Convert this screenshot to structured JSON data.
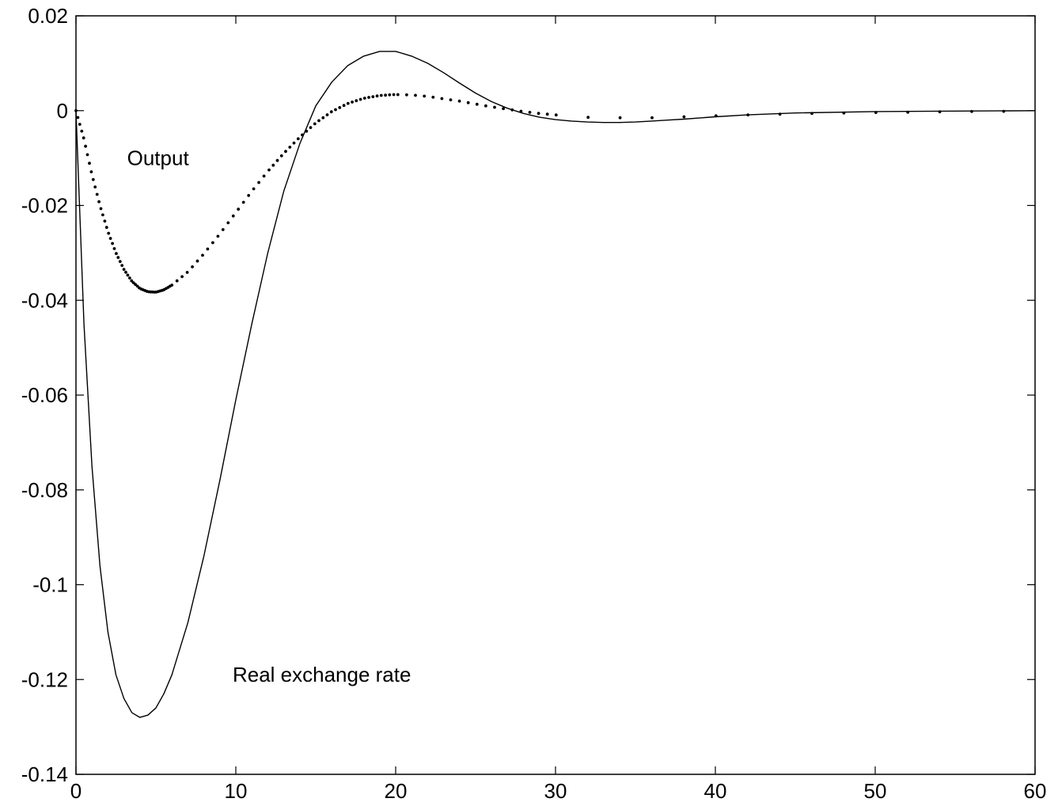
{
  "chart_data": {
    "type": "line",
    "title": "",
    "xlabel": "",
    "ylabel": "",
    "xlim": [
      0,
      60
    ],
    "ylim": [
      -0.14,
      0.02
    ],
    "grid": false,
    "legend": "none",
    "x_ticks": [
      0,
      10,
      20,
      30,
      40,
      50,
      60
    ],
    "x_tick_labels": [
      "0",
      "10",
      "20",
      "30",
      "40",
      "50",
      "60"
    ],
    "y_ticks": [
      0.02,
      0,
      -0.02,
      -0.04,
      -0.06,
      -0.08,
      -0.1,
      -0.12,
      -0.14
    ],
    "y_tick_labels": [
      "0.02",
      "0",
      "-0.02",
      "-0.04",
      "-0.06",
      "-0.08",
      "-0.1",
      "-0.12",
      "-0.14"
    ],
    "annotations": [
      {
        "text": "Output",
        "x": 3.2,
        "y": -0.0115
      },
      {
        "text": "Real exchange rate",
        "x": 9.8,
        "y": -0.1205
      }
    ],
    "series": [
      {
        "name": "Real exchange rate",
        "style": "solid",
        "color": "#000000",
        "x": [
          0,
          0.5,
          1,
          1.5,
          2,
          2.5,
          3,
          3.5,
          4,
          4.5,
          5,
          5.5,
          6,
          7,
          8,
          9,
          10,
          11,
          12,
          13,
          14,
          15,
          16,
          17,
          18,
          19,
          20,
          21,
          22,
          23,
          24,
          25,
          26,
          27,
          28,
          29,
          30,
          31,
          32,
          33,
          34,
          35,
          36,
          37,
          38,
          40,
          42,
          45,
          50,
          55,
          60
        ],
        "y": [
          0,
          -0.045,
          -0.075,
          -0.096,
          -0.11,
          -0.119,
          -0.124,
          -0.127,
          -0.128,
          -0.1275,
          -0.126,
          -0.123,
          -0.119,
          -0.108,
          -0.094,
          -0.078,
          -0.061,
          -0.045,
          -0.03,
          -0.017,
          -0.007,
          0.001,
          0.006,
          0.0095,
          0.0115,
          0.0125,
          0.0125,
          0.0115,
          0.01,
          0.008,
          0.0058,
          0.0037,
          0.0019,
          0.0005,
          -0.0006,
          -0.0014,
          -0.0019,
          -0.0022,
          -0.0024,
          -0.0025,
          -0.0025,
          -0.0024,
          -0.0022,
          -0.002,
          -0.0018,
          -0.0013,
          -0.0009,
          -0.0005,
          -0.0002,
          -0.0001,
          0
        ]
      },
      {
        "name": "Output",
        "style": "dotted",
        "color": "#000000",
        "x": [
          0,
          0.5,
          1,
          1.5,
          2,
          2.5,
          3,
          3.5,
          4,
          4.5,
          5,
          5.5,
          6,
          7,
          8,
          9,
          10,
          11,
          12,
          13,
          14,
          15,
          16,
          17,
          18,
          19,
          20,
          21,
          22,
          23,
          24,
          25,
          26,
          27,
          28,
          29,
          30,
          31,
          32,
          33,
          34,
          36,
          38,
          42,
          46,
          50,
          55,
          60
        ],
        "y": [
          0,
          -0.006,
          -0.0135,
          -0.02,
          -0.0255,
          -0.03,
          -0.0335,
          -0.036,
          -0.0375,
          -0.0382,
          -0.0383,
          -0.0378,
          -0.0368,
          -0.034,
          -0.0302,
          -0.026,
          -0.0215,
          -0.017,
          -0.0128,
          -0.009,
          -0.0056,
          -0.0026,
          -0.0002,
          0.0015,
          0.0026,
          0.0032,
          0.0034,
          0.0033,
          0.003,
          0.0025,
          0.002,
          0.0014,
          0.0008,
          0.0003,
          -0.0002,
          -0.0006,
          -0.0009,
          -0.0012,
          -0.0014,
          -0.0015,
          -0.0015,
          -0.0015,
          -0.0013,
          -0.0009,
          -0.0006,
          -0.0004,
          -0.0002,
          -0.0001
        ]
      }
    ]
  }
}
